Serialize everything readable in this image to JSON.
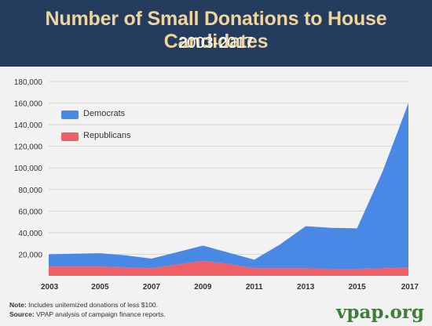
{
  "header": {
    "title": "Number of Small Donations to House Candidates",
    "subtitle": "2003-2017"
  },
  "colors": {
    "header_bg": "#243c5e",
    "title": "#f2d49b",
    "democrats": "#4a88e6",
    "republicans": "#ee5f66",
    "brand": "#3e7d3a"
  },
  "chart_data": {
    "type": "area",
    "title": "Number of Small Donations to House Candidates",
    "subtitle": "2003-2017",
    "x": [
      "2003",
      "2004",
      "2005",
      "2006",
      "2007",
      "2008",
      "2009",
      "2010",
      "2011",
      "2012",
      "2013",
      "2014",
      "2015",
      "2016",
      "2017"
    ],
    "xticks": [
      "2003",
      "2005",
      "2007",
      "2009",
      "2011",
      "2013",
      "2015",
      "2017"
    ],
    "yticks": [
      "20,000",
      "40,000",
      "60,000",
      "80,000",
      "100,000",
      "120,000",
      "140,000",
      "160,000",
      "180,000"
    ],
    "ylim": [
      0,
      180000
    ],
    "stacked": true,
    "series": [
      {
        "name": "Republicans",
        "values": [
          8500,
          8500,
          8500,
          8000,
          7000,
          10500,
          14000,
          11000,
          7000,
          7000,
          7000,
          6500,
          6500,
          7000,
          7500
        ]
      },
      {
        "name": "Democrats",
        "values": [
          11500,
          12000,
          12500,
          11000,
          9000,
          11500,
          14000,
          10500,
          8000,
          22000,
          39000,
          38000,
          37500,
          90000,
          152500
        ]
      }
    ],
    "legend": [
      "Democrats",
      "Republicans"
    ],
    "legend_position": "top-left",
    "grid": true
  },
  "notes": {
    "note_label": "Note:",
    "note_text": " Includes unitemized donations of less $100.",
    "source_label": "Source:",
    "source_text": " VPAP analysis of campaign finance reports."
  },
  "brand": "vpap.org"
}
